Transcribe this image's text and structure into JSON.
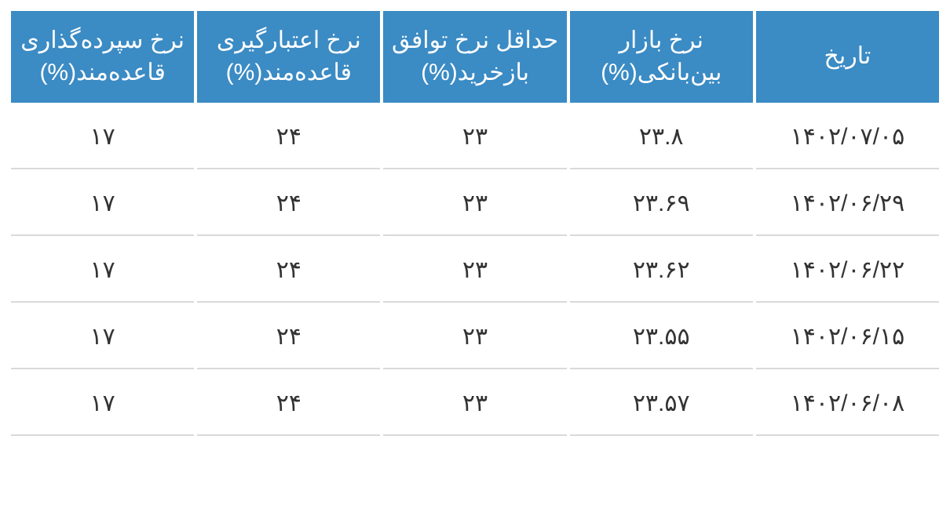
{
  "table": {
    "type": "table",
    "background_color": "#ffffff",
    "header_bg_color": "#3b8bc4",
    "header_text_color": "#ffffff",
    "row_border_color": "#d9d9d9",
    "cell_text_color": "#333333",
    "header_fontsize": 30,
    "cell_fontsize": 30,
    "border_spacing": 4,
    "columns": [
      {
        "label": "تاریخ",
        "align": "center"
      },
      {
        "label": "نرخ بازار بین‌بانکی(%)",
        "align": "center"
      },
      {
        "label": "حداقل نرخ توافق بازخرید(%)",
        "align": "center"
      },
      {
        "label": "نرخ اعتبارگیری قاعده‌مند(%)",
        "align": "center"
      },
      {
        "label": "نرخ سپرده‌گذاری قاعده‌مند(%)",
        "align": "center"
      }
    ],
    "rows": [
      {
        "date": "۱۴۰۲/۰۷/۰۵",
        "interbank": "۲۳.۸",
        "repo": "۲۳",
        "credit": "۲۴",
        "deposit": "۱۷"
      },
      {
        "date": "۱۴۰۲/۰۶/۲۹",
        "interbank": "۲۳.۶۹",
        "repo": "۲۳",
        "credit": "۲۴",
        "deposit": "۱۷"
      },
      {
        "date": "۱۴۰۲/۰۶/۲۲",
        "interbank": "۲۳.۶۲",
        "repo": "۲۳",
        "credit": "۲۴",
        "deposit": "۱۷"
      },
      {
        "date": "۱۴۰۲/۰۶/۱۵",
        "interbank": "۲۳.۵۵",
        "repo": "۲۳",
        "credit": "۲۴",
        "deposit": "۱۷"
      },
      {
        "date": "۱۴۰۲/۰۶/۰۸",
        "interbank": "۲۳.۵۷",
        "repo": "۲۳",
        "credit": "۲۴",
        "deposit": "۱۷"
      }
    ]
  }
}
